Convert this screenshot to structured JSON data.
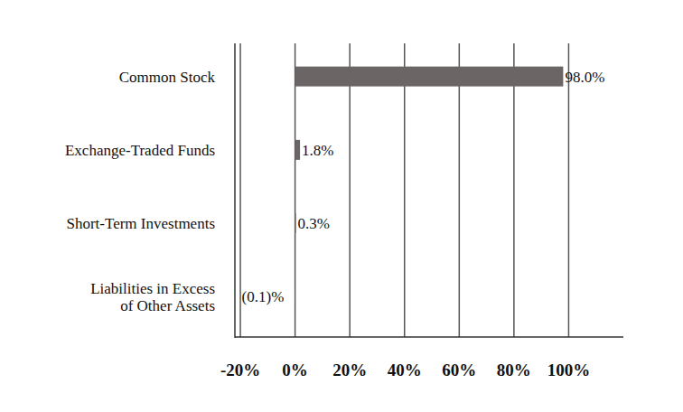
{
  "chart_data": {
    "type": "bar",
    "orientation": "horizontal",
    "categories": [
      "Common Stock",
      "Exchange-Traded Funds",
      "Short-Term Investments",
      "Liabilities in Excess\nof Other Assets"
    ],
    "values": [
      98.0,
      1.8,
      0.3,
      -0.1
    ],
    "value_labels": [
      "98.0%",
      "1.8%",
      "0.3%",
      "(0.1)%"
    ],
    "data_labels": true,
    "color": "#6b6566",
    "xlim": [
      -22,
      120
    ],
    "xticks": [
      {
        "value": -20,
        "label": "-20%"
      },
      {
        "value": 0,
        "label": "0%"
      },
      {
        "value": 20,
        "label": "20%"
      },
      {
        "value": 40,
        "label": "40%"
      },
      {
        "value": 60,
        "label": "60%"
      },
      {
        "value": 80,
        "label": "80%"
      },
      {
        "value": 100,
        "label": "100%"
      }
    ],
    "grid": true
  }
}
